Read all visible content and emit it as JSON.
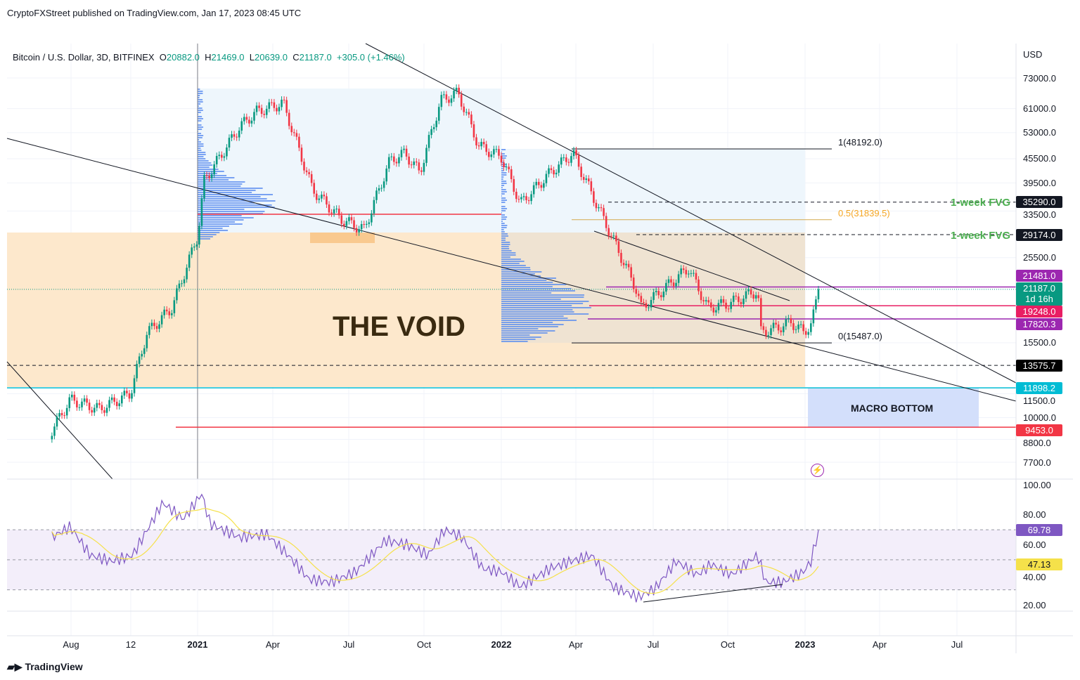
{
  "publisher": "CryptoFXStreet published on TradingView.com, Jan 17, 2023 08:45 UTC",
  "legend": {
    "symbol": "Bitcoin / U.S. Dollar, 3D, BITFINEX",
    "o_label": "O",
    "o": "20882.0",
    "h_label": "H",
    "h": "21469.0",
    "l_label": "L",
    "l": "20639.0",
    "c_label": "C",
    "c": "21187.0",
    "change": "+305.0 (+1.46%)"
  },
  "currency": "USD",
  "brand": "TradingView",
  "colors": {
    "up": "#089981",
    "down": "#f23645",
    "void": "#fde8cc",
    "macro": "#d3dffb",
    "rsi": "#7e57c2",
    "rsi_ma": "#f5e14a"
  },
  "annotations": {
    "void": "THE VOID",
    "macro_bottom": "MACRO BOTTOM",
    "fvg1": "1-week FVG",
    "fvg2": "1-week FVG",
    "fib1": "1(48192.0)",
    "fib05": "0.5(31839.5)",
    "fib0": "0(15487.0)"
  },
  "price_levels": {
    "fvg1": 35290,
    "fvg2": 29174,
    "fib1": 48192,
    "fib05": 31839.5,
    "fib0": 15487,
    "resist": 21481,
    "current": 21187,
    "red": 19248,
    "purple": 17820.3,
    "dashed": 13575.7,
    "cyan": 11898.2,
    "macro": 9453
  },
  "price_tags": [
    {
      "text": "35290.0",
      "price": 35290,
      "bg": "#131722"
    },
    {
      "text": "29174.0",
      "price": 29174,
      "bg": "#131722"
    },
    {
      "text": "21481.0",
      "price": 21481,
      "bg": "#9c27b0"
    },
    {
      "text": "19248.0",
      "price": 19248,
      "bg": "#e91e63"
    },
    {
      "text": "17820.3",
      "price": 17820.3,
      "bg": "#9c27b0"
    },
    {
      "text": "13575.7",
      "price": 13575.7,
      "bg": "#000000"
    },
    {
      "text": "11898.2",
      "price": 11898.2,
      "bg": "#00bcd4"
    },
    {
      "text": "9453.0",
      "price": 9453,
      "bg": "#f23645"
    }
  ],
  "current_tag": {
    "price": "21187.0",
    "countdown": "1d 16h"
  },
  "price_axis": [
    "73000.0",
    "61000.0",
    "53000.0",
    "45500.0",
    "39500.0",
    "33500.0",
    "25500.0",
    "15500.0",
    "11500.0",
    "10000.0",
    "8800.0",
    "7700.0"
  ],
  "rsi_axis": [
    "100.00",
    "80.00",
    "60.00",
    "40.00",
    "20.00"
  ],
  "rsi_tags": {
    "rsi": "69.78",
    "ma": "47.13"
  },
  "time_axis": [
    "Aug",
    "12",
    "2021",
    "Apr",
    "Jul",
    "Oct",
    "2022",
    "Apr",
    "Jul",
    "Oct",
    "2023",
    "Apr",
    "Jul"
  ],
  "chart_data": {
    "type": "candlestick",
    "scale": "log",
    "timeframe": "3D",
    "ylim": [
      7700,
      73000
    ],
    "close_path": [
      [
        "2020-07-10",
        9300
      ],
      [
        "2020-08-01",
        11100
      ],
      [
        "2020-09-05",
        10500
      ],
      [
        "2020-10-12",
        11500
      ],
      [
        "2020-11-01",
        16400
      ],
      [
        "2020-12-01",
        19000
      ],
      [
        "2021-01-01",
        28900
      ],
      [
        "2021-01-09",
        40000
      ],
      [
        "2021-02-21",
        55000
      ],
      [
        "2021-03-13",
        60000
      ],
      [
        "2021-04-14",
        63000
      ],
      [
        "2021-05-19",
        38000
      ],
      [
        "2021-06-22",
        32000
      ],
      [
        "2021-07-20",
        30000
      ],
      [
        "2021-08-20",
        45000
      ],
      [
        "2021-09-07",
        47000
      ],
      [
        "2021-09-25",
        42000
      ],
      [
        "2021-10-20",
        64000
      ],
      [
        "2021-11-10",
        67000
      ],
      [
        "2021-12-05",
        49000
      ],
      [
        "2022-01-01",
        46000
      ],
      [
        "2022-01-24",
        35000
      ],
      [
        "2022-03-01",
        42000
      ],
      [
        "2022-03-28",
        47000
      ],
      [
        "2022-05-10",
        30000
      ],
      [
        "2022-06-13",
        21000
      ],
      [
        "2022-06-18",
        19000
      ],
      [
        "2022-08-14",
        24000
      ],
      [
        "2022-09-06",
        19000
      ],
      [
        "2022-10-01",
        19500
      ],
      [
        "2022-11-05",
        21000
      ],
      [
        "2022-11-09",
        16500
      ],
      [
        "2022-12-01",
        17000
      ],
      [
        "2022-12-15",
        17500
      ],
      [
        "2022-12-30",
        16500
      ],
      [
        "2023-01-09",
        17300
      ],
      [
        "2023-01-17",
        21187
      ]
    ],
    "rsi_path": [
      [
        "2020-07-10",
        65
      ],
      [
        "2020-08-01",
        72
      ],
      [
        "2020-08-25",
        53
      ],
      [
        "2020-09-20",
        49
      ],
      [
        "2020-10-15",
        53
      ],
      [
        "2020-11-20",
        88
      ],
      [
        "2020-12-15",
        77
      ],
      [
        "2021-01-06",
        94
      ],
      [
        "2021-01-16",
        74
      ],
      [
        "2021-02-20",
        65
      ],
      [
        "2021-03-25",
        67
      ],
      [
        "2021-04-20",
        53
      ],
      [
        "2021-05-15",
        37
      ],
      [
        "2021-06-10",
        35
      ],
      [
        "2021-07-10",
        42
      ],
      [
        "2021-08-15",
        63
      ],
      [
        "2021-09-10",
        60
      ],
      [
        "2021-10-05",
        53
      ],
      [
        "2021-10-25",
        70
      ],
      [
        "2021-11-15",
        65
      ],
      [
        "2021-12-10",
        44
      ],
      [
        "2022-01-01",
        42
      ],
      [
        "2022-01-24",
        32
      ],
      [
        "2022-02-28",
        44
      ],
      [
        "2022-03-25",
        49
      ],
      [
        "2022-04-20",
        53
      ],
      [
        "2022-05-15",
        32
      ],
      [
        "2022-06-15",
        25
      ],
      [
        "2022-07-05",
        31
      ],
      [
        "2022-07-30",
        49
      ],
      [
        "2022-08-25",
        40
      ],
      [
        "2022-09-10",
        47
      ],
      [
        "2022-10-05",
        40
      ],
      [
        "2022-11-05",
        53
      ],
      [
        "2022-11-15",
        35
      ],
      [
        "2022-12-05",
        35
      ],
      [
        "2022-12-30",
        42
      ],
      [
        "2023-01-08",
        49
      ],
      [
        "2023-01-17",
        69.78
      ]
    ],
    "rsi_ma_last": 47.13,
    "rsi_bands": [
      70,
      50,
      30
    ]
  }
}
